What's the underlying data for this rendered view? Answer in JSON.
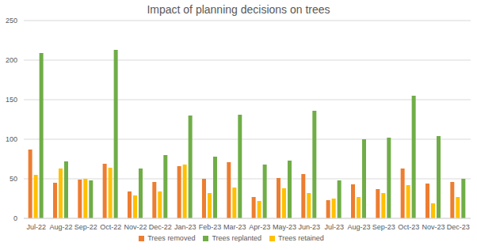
{
  "chart_data": {
    "type": "bar",
    "title": "Impact of planning decisions on trees",
    "categories": [
      "Jul-22",
      "Aug-22",
      "Sep-22",
      "Oct-22",
      "Nov-22",
      "Dec-22",
      "Jan-23",
      "Feb-23",
      "Mar-23",
      "Apr-23",
      "May-23",
      "Jun-23",
      "Jul-23",
      "Aug-23",
      "Sep-23",
      "Oct-23",
      "Nov-23",
      "Dec-23"
    ],
    "series": [
      {
        "name": "Trees removed",
        "color": "#ed7d31",
        "values": [
          87,
          45,
          49,
          69,
          34,
          46,
          66,
          50,
          71,
          27,
          51,
          56,
          23,
          43,
          37,
          63,
          44,
          46
        ]
      },
      {
        "name": "Trees retained",
        "color": "#ffc000",
        "values": [
          55,
          63,
          50,
          64,
          29,
          34,
          68,
          32,
          39,
          22,
          38,
          32,
          25,
          27,
          32,
          42,
          19,
          27
        ]
      },
      {
        "name": "Trees replanted",
        "color": "#70ad47",
        "values": [
          209,
          72,
          48,
          213,
          63,
          80,
          130,
          78,
          131,
          68,
          73,
          136,
          48,
          100,
          102,
          155,
          104,
          50
        ]
      }
    ],
    "ylim": [
      0,
      250
    ],
    "yticks": [
      0,
      50,
      100,
      150,
      200,
      250
    ],
    "grid": true,
    "legend": "bottom"
  }
}
